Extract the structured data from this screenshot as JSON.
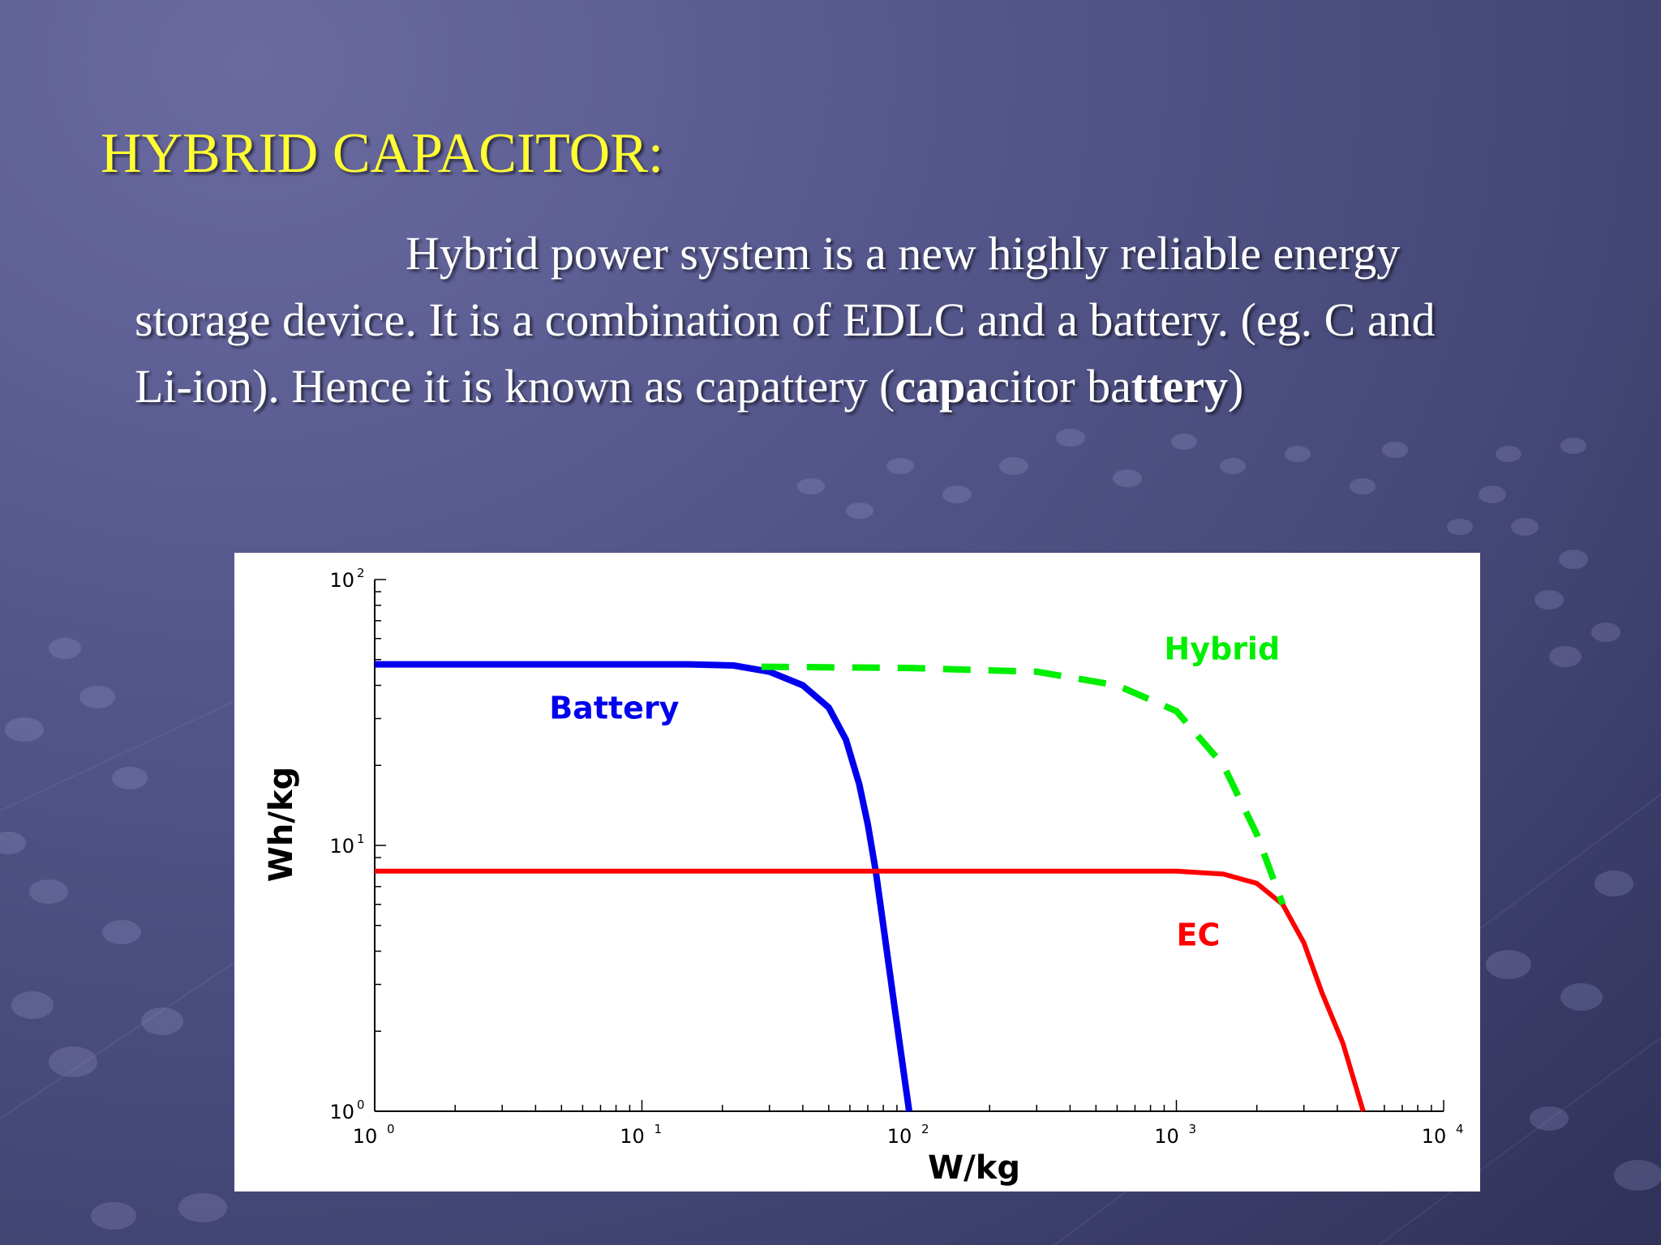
{
  "slide": {
    "title": "HYBRID CAPACITOR:",
    "paragraph": [
      {
        "text": "Hybrid power system is a new highly reliable energy storage device. It is a combination of EDLC and a battery. (eg.  C and Li-ion). Hence it is known as capattery (",
        "bold": false
      },
      {
        "text": "capa",
        "bold": true
      },
      {
        "text": "citor ba",
        "bold": false
      },
      {
        "text": "ttery",
        "bold": true
      },
      {
        "text": ")",
        "bold": false
      }
    ]
  },
  "chart_data": {
    "type": "line",
    "title": "",
    "xlabel": "W/kg",
    "ylabel": "Wh/kg",
    "x_scale": "log",
    "y_scale": "log",
    "xlim": [
      1,
      10000
    ],
    "ylim": [
      1,
      100
    ],
    "x_ticks": [
      {
        "value": 1,
        "base": "10",
        "exp": "0"
      },
      {
        "value": 10,
        "base": "10",
        "exp": "1"
      },
      {
        "value": 100,
        "base": "10",
        "exp": "2"
      },
      {
        "value": 1000,
        "base": "10",
        "exp": "3"
      },
      {
        "value": 10000,
        "base": "10",
        "exp": "4"
      }
    ],
    "y_ticks": [
      {
        "value": 1,
        "base": "10",
        "exp": "0"
      },
      {
        "value": 10,
        "base": "10",
        "exp": "1"
      },
      {
        "value": 100,
        "base": "10",
        "exp": "2"
      }
    ],
    "grid": false,
    "series": [
      {
        "name": "Battery",
        "color": "#0000ee",
        "style": "solid",
        "label_at": [
          4.5,
          30
        ],
        "points": [
          [
            1,
            48
          ],
          [
            15,
            48
          ],
          [
            22,
            47.5
          ],
          [
            30,
            45
          ],
          [
            40,
            40
          ],
          [
            50,
            33
          ],
          [
            58,
            25
          ],
          [
            65,
            17
          ],
          [
            70,
            12
          ],
          [
            75,
            8
          ],
          [
            80,
            5
          ],
          [
            88,
            2.5
          ],
          [
            100,
            1
          ]
        ]
      },
      {
        "name": "EC",
        "color": "#ff0000",
        "style": "solid",
        "label_at": [
          1000,
          4.2
        ],
        "points": [
          [
            1,
            8
          ],
          [
            1000,
            8
          ],
          [
            1500,
            7.8
          ],
          [
            2000,
            7.2
          ],
          [
            2500,
            6
          ],
          [
            3000,
            4.3
          ],
          [
            3500,
            2.8
          ],
          [
            4200,
            1.8
          ],
          [
            5000,
            1
          ]
        ]
      },
      {
        "name": "Hybrid",
        "color": "#00ee00",
        "style": "dashed",
        "label_at": [
          900,
          50
        ],
        "points": [
          [
            28,
            47
          ],
          [
            100,
            46.5
          ],
          [
            300,
            45
          ],
          [
            600,
            40
          ],
          [
            1000,
            32
          ],
          [
            1500,
            20
          ],
          [
            2000,
            11
          ],
          [
            2500,
            6
          ]
        ]
      }
    ]
  }
}
